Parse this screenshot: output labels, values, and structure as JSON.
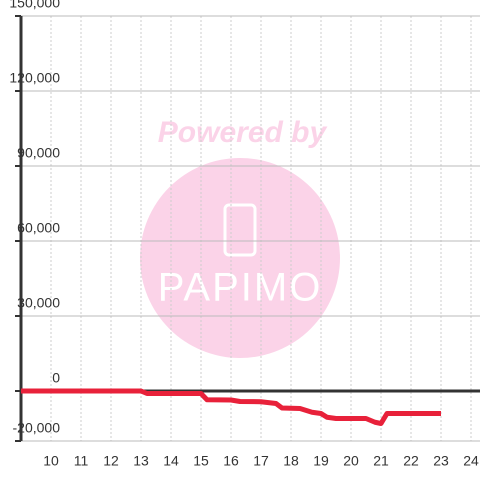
{
  "chart_data": {
    "type": "line",
    "watermark": {
      "top": "Powered by",
      "logo": "PAPIMO"
    },
    "x": [
      9,
      13,
      13.2,
      15,
      15.2,
      16,
      16.3,
      17,
      17.5,
      17.7,
      18.3,
      18.7,
      19,
      19.2,
      19.5,
      20,
      20.5,
      20.8,
      21,
      21.2,
      21.5,
      22,
      23
    ],
    "series": [
      {
        "color": "#e8213a",
        "values": [
          0,
          0,
          -1000,
          -1000,
          -3500,
          -3600,
          -4200,
          -4300,
          -5000,
          -6800,
          -7000,
          -8500,
          -9000,
          -10500,
          -11000,
          -11000,
          -11000,
          -12500,
          -13000,
          -9000,
          -9000,
          -9000,
          -9000
        ]
      }
    ],
    "xlim": [
      9,
      24.3
    ],
    "xticks": [
      10,
      11,
      12,
      13,
      14,
      15,
      16,
      17,
      18,
      19,
      20,
      21,
      22,
      23,
      24
    ],
    "ylim": [
      -20000,
      150000
    ],
    "yticks": [
      {
        "value": -20000,
        "label": "-20,000"
      },
      0,
      {
        "value": 30000,
        "label": "30,000"
      },
      {
        "value": 60000,
        "label": "60,000"
      },
      {
        "value": 90000,
        "label": "90,000"
      },
      {
        "value": 120000,
        "label": "120,000"
      },
      {
        "value": 150000,
        "label": "150,000"
      }
    ],
    "grid": true
  }
}
